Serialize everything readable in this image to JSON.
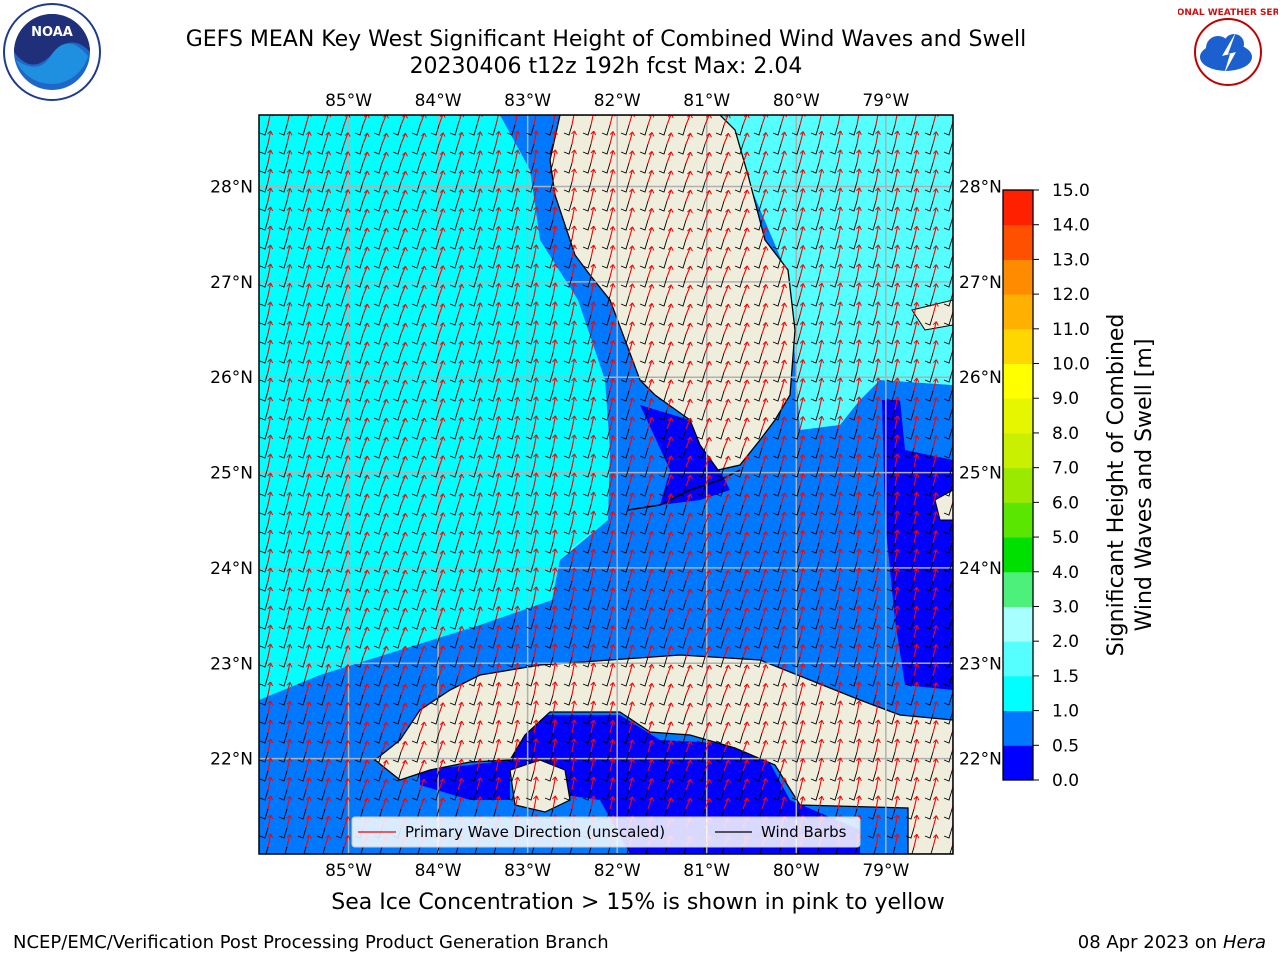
{
  "header": {
    "title_line1": "GEFS MEAN Key West Significant Height of Combined Wind Waves and Swell",
    "title_line2": "20230406 t12z 192h fcst   Max: 2.04"
  },
  "logos": {
    "left_text": "NOAA",
    "right_text": "NATIONAL WEATHER SERVICE"
  },
  "map": {
    "lon_ticks": [
      "85°W",
      "84°W",
      "83°W",
      "82°W",
      "81°W",
      "80°W",
      "79°W"
    ],
    "lat_ticks": [
      "28°N",
      "27°N",
      "26°N",
      "25°N",
      "24°N",
      "23°N",
      "22°N"
    ],
    "lon_values": [
      -85,
      -84,
      -83,
      -82,
      -81,
      -80,
      -79
    ],
    "lat_values": [
      28,
      27,
      26,
      25,
      24,
      23,
      22
    ],
    "extent": {
      "lon_min": -86.0,
      "lon_max": -78.25,
      "lat_min": 21.0,
      "lat_max": 28.75
    },
    "colors": {
      "land": "#efeedc",
      "level_0": "#0000ff",
      "level_05": "#0078ff",
      "level_1": "#00ffff",
      "level_15": "#55ffff",
      "wave_arrow": "#ff0000",
      "barb": "#000000",
      "grid": "#b0b0b0"
    }
  },
  "legend": {
    "primary_wave": "Primary Wave Direction (unscaled)",
    "wind_barbs": "Wind Barbs"
  },
  "colorbar": {
    "label_line1": "Significant Height of Combined",
    "label_line2": "Wind Waves and Swell [m]",
    "ticks": [
      "0.0",
      "0.5",
      "1.0",
      "1.5",
      "2.0",
      "3.0",
      "4.0",
      "5.0",
      "6.0",
      "7.0",
      "8.0",
      "9.0",
      "10.0",
      "11.0",
      "12.0",
      "13.0",
      "14.0",
      "15.0"
    ],
    "colors": [
      "#0000ff",
      "#0078ff",
      "#00ffff",
      "#55ffff",
      "#a8ffff",
      "#4df07a",
      "#00e000",
      "#5ae600",
      "#9be800",
      "#c8f000",
      "#e6f500",
      "#ffff00",
      "#ffd700",
      "#ffb000",
      "#ff8c00",
      "#ff5000",
      "#ff2000"
    ]
  },
  "subtitle": "Sea Ice Concentration > 15% is shown in pink to yellow",
  "footer": {
    "left": "NCEP/EMC/Verification Post Processing Product Generation Branch",
    "date": "08 Apr 2023 on ",
    "machine": "Hera"
  }
}
